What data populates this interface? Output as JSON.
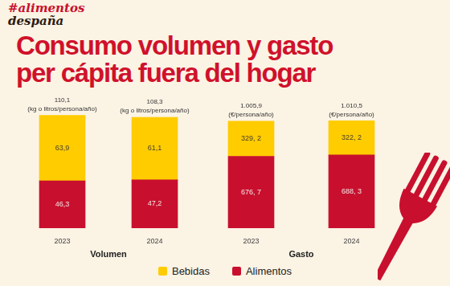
{
  "header": {
    "brand": [
      "#alimentos",
      "despaña"
    ],
    "title": "Consumo volumen y gasto\nper cápita fuera del hogar"
  },
  "chart_data": [
    {
      "type": "bar",
      "stacked": true,
      "xlabel": "Volumen",
      "categories": [
        "2023",
        "2024"
      ],
      "series": [
        {
          "name": "Bebidas",
          "color": "#FFCC00",
          "values": [
            63.9,
            61.1
          ],
          "value_labels": [
            "63,9",
            "61,1"
          ]
        },
        {
          "name": "Alimentos",
          "color": "#C8102E",
          "values": [
            46.3,
            47.2
          ],
          "value_labels": [
            "46,3",
            "47,2"
          ]
        }
      ],
      "totals": [
        110.1,
        108.3
      ],
      "total_labels": [
        "110,1",
        "108,3"
      ],
      "unit": "(kg o litros/persona/año)",
      "ylim": [
        0,
        135
      ],
      "data_labels": true,
      "grid": false,
      "tick_labels": "x",
      "legend": "bottom"
    },
    {
      "type": "bar",
      "stacked": true,
      "xlabel": "Gasto",
      "categories": [
        "2023",
        "2024"
      ],
      "series": [
        {
          "name": "Bebidas",
          "color": "#FFCC00",
          "values": [
            329.2,
            322.2
          ],
          "value_labels": [
            "329, 2",
            "322, 2"
          ]
        },
        {
          "name": "Alimentos",
          "color": "#C8102E",
          "values": [
            676.7,
            688.3
          ],
          "value_labels": [
            "676, 7",
            "688, 3"
          ]
        }
      ],
      "totals": [
        1005.9,
        1010.5
      ],
      "total_labels": [
        "1.005,9",
        "1.010,5"
      ],
      "unit": "(€/persona/año)",
      "ylim": [
        0,
        1300
      ],
      "data_labels": true,
      "grid": false,
      "tick_labels": "x"
    }
  ]
}
